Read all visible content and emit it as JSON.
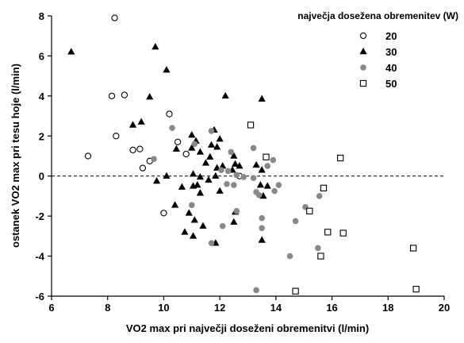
{
  "chart_data": {
    "type": "scatter",
    "title": "",
    "xlabel": "VO2 max pri največji doseženi obremenitvi (l/min)",
    "ylabel": "ostanek VO2 max pri tesu hoje (l/min)",
    "xlim": [
      6,
      20
    ],
    "ylim": [
      -6,
      8
    ],
    "xticks": [
      6,
      8,
      10,
      12,
      14,
      16,
      18,
      20
    ],
    "yticks": [
      -6,
      -4,
      -2,
      0,
      2,
      4,
      6,
      8
    ],
    "grid": false,
    "reference_line": {
      "y": 0,
      "style": "dashed"
    },
    "legend": {
      "title": "največja dosežena obremenitev (W)",
      "placement": "top-right"
    },
    "series": [
      {
        "name": "20",
        "marker": "open-circle",
        "color": "#000000",
        "points": [
          [
            8.25,
            7.9
          ],
          [
            8.15,
            4.0
          ],
          [
            8.6,
            4.05
          ],
          [
            8.3,
            2.0
          ],
          [
            7.3,
            1.0
          ],
          [
            8.9,
            1.3
          ],
          [
            9.15,
            1.35
          ],
          [
            9.25,
            0.4
          ],
          [
            9.5,
            0.75
          ],
          [
            10.2,
            3.1
          ],
          [
            10.5,
            1.7
          ],
          [
            10.8,
            1.1
          ],
          [
            10.0,
            -1.85
          ],
          [
            12.7,
            0.0
          ]
        ]
      },
      {
        "name": "30",
        "marker": "filled-triangle",
        "color": "#000000",
        "points": [
          [
            6.7,
            6.2
          ],
          [
            9.7,
            6.45
          ],
          [
            10.1,
            5.3
          ],
          [
            9.5,
            3.95
          ],
          [
            12.2,
            4.0
          ],
          [
            13.5,
            3.85
          ],
          [
            9.2,
            2.7
          ],
          [
            8.9,
            2.55
          ],
          [
            11.8,
            2.3
          ],
          [
            12.0,
            1.85
          ],
          [
            11.0,
            2.05
          ],
          [
            11.7,
            1.55
          ],
          [
            11.15,
            1.75
          ],
          [
            11.9,
            1.45
          ],
          [
            11.0,
            1.4
          ],
          [
            10.45,
            1.35
          ],
          [
            11.3,
            1.2
          ],
          [
            12.5,
            1.0
          ],
          [
            11.65,
            0.95
          ],
          [
            11.5,
            0.65
          ],
          [
            12.1,
            0.5
          ],
          [
            12.55,
            0.6
          ],
          [
            12.7,
            0.5
          ],
          [
            12.45,
            0.3
          ],
          [
            13.3,
            0.55
          ],
          [
            11.9,
            0.4
          ],
          [
            13.5,
            0.3
          ],
          [
            11.05,
            0.1
          ],
          [
            11.3,
            -0.05
          ],
          [
            10.1,
            0.0
          ],
          [
            11.85,
            0.0
          ],
          [
            9.75,
            -0.25
          ],
          [
            11.2,
            -0.45
          ],
          [
            11.6,
            -0.2
          ],
          [
            10.65,
            -0.55
          ],
          [
            11.05,
            -0.5
          ],
          [
            11.3,
            -0.85
          ],
          [
            13.45,
            -0.45
          ],
          [
            13.7,
            -0.5
          ],
          [
            12.0,
            -0.75
          ],
          [
            13.55,
            -1.0
          ],
          [
            10.4,
            -1.45
          ],
          [
            10.9,
            -1.85
          ],
          [
            12.55,
            -1.8
          ],
          [
            12.5,
            -2.3
          ],
          [
            10.75,
            -2.8
          ],
          [
            11.1,
            -2.2
          ],
          [
            11.4,
            -2.5
          ],
          [
            11.05,
            -3.0
          ],
          [
            11.85,
            -3.35
          ],
          [
            13.5,
            -3.2
          ]
        ]
      },
      {
        "name": "40",
        "marker": "filled-circle",
        "color": "#888888",
        "points": [
          [
            10.3,
            2.4
          ],
          [
            11.7,
            2.25
          ],
          [
            9.65,
            0.85
          ],
          [
            11.1,
            1.6
          ],
          [
            12.4,
            1.2
          ],
          [
            13.2,
            1.4
          ],
          [
            12.05,
            0.3
          ],
          [
            12.3,
            0.25
          ],
          [
            12.6,
            0.05
          ],
          [
            12.85,
            -0.05
          ],
          [
            13.2,
            -0.1
          ],
          [
            13.7,
            0.5
          ],
          [
            13.9,
            0.8
          ],
          [
            14.1,
            -0.45
          ],
          [
            12.25,
            -0.4
          ],
          [
            12.5,
            -0.45
          ],
          [
            13.3,
            -0.8
          ],
          [
            13.4,
            -0.95
          ],
          [
            13.95,
            -0.75
          ],
          [
            11.0,
            -1.45
          ],
          [
            12.6,
            -1.75
          ],
          [
            12.1,
            -2.5
          ],
          [
            13.5,
            -2.1
          ],
          [
            13.5,
            -2.6
          ],
          [
            15.55,
            -1.0
          ],
          [
            15.05,
            -1.55
          ],
          [
            14.7,
            -2.25
          ],
          [
            11.7,
            -3.35
          ],
          [
            14.5,
            -4.0
          ],
          [
            13.3,
            -5.7
          ],
          [
            15.5,
            -3.6
          ]
        ]
      },
      {
        "name": "50",
        "marker": "open-square",
        "color": "#000000",
        "points": [
          [
            13.1,
            2.55
          ],
          [
            13.65,
            0.95
          ],
          [
            16.3,
            0.9
          ],
          [
            15.7,
            -0.6
          ],
          [
            15.2,
            -1.75
          ],
          [
            15.85,
            -2.8
          ],
          [
            16.4,
            -2.85
          ],
          [
            15.6,
            -4.0
          ],
          [
            18.9,
            -3.6
          ],
          [
            14.7,
            -5.75
          ],
          [
            19.0,
            -5.65
          ]
        ]
      }
    ]
  }
}
